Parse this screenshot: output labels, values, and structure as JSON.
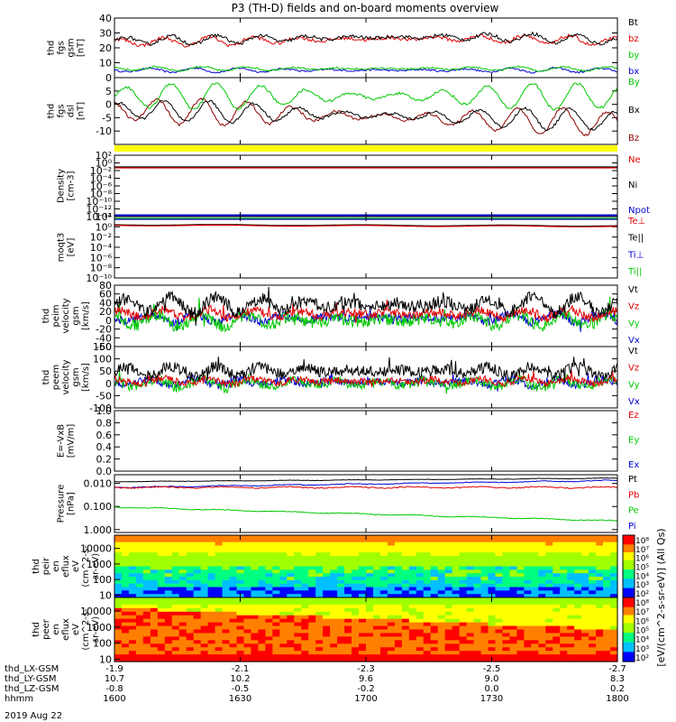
{
  "title": "P3 (TH-D) fields and on-board moments overview",
  "date_label": "2019 Aug 22",
  "colors": {
    "black": "#000000",
    "red": "#e00000",
    "green": "#00c800",
    "blue": "#0000d0",
    "darkred": "#8b0000",
    "yellow": "#ffff00"
  },
  "chart_data": [
    {
      "type": "line",
      "id": "fgs_mag",
      "ylabel": [
        "thd",
        "fgs",
        "gsm",
        "[nT]"
      ],
      "ylim": [
        0,
        40
      ],
      "yticks": [
        "0",
        "10",
        "20",
        "30",
        "40"
      ],
      "series": [
        {
          "name": "Bt",
          "color": "#000000",
          "mean": 25,
          "amp": 3,
          "trend": 4,
          "noise": 1.2
        },
        {
          "name": "bz",
          "color": "#e00000",
          "mean": 24,
          "amp": 3,
          "trend": 4,
          "noise": 1.2
        },
        {
          "name": "by",
          "color": "#00c800",
          "mean": 6,
          "amp": 1.5,
          "trend": 0,
          "noise": 0.6
        },
        {
          "name": "bx",
          "color": "#0000d0",
          "mean": 5,
          "amp": 1.5,
          "trend": 0,
          "noise": 0.6
        }
      ]
    },
    {
      "type": "line",
      "id": "fgs_dsl",
      "ylabel": [
        "thd",
        "fgs",
        "dsl",
        "[nT]"
      ],
      "ylim": [
        -15,
        10
      ],
      "yticks": [
        "-10",
        "-5",
        "0",
        "5"
      ],
      "series": [
        {
          "name": "By",
          "color": "#00c800",
          "mean": 3,
          "amp": 5,
          "trend": 0,
          "noise": 0.5
        },
        {
          "name": "Bx",
          "color": "#000000",
          "mean": -2,
          "amp": 4,
          "trend": -4,
          "noise": 0.5
        },
        {
          "name": "Bz",
          "color": "#8b0000",
          "mean": -2,
          "amp": 5,
          "trend": -5,
          "noise": 0.5
        }
      ]
    },
    {
      "type": "line",
      "id": "density",
      "scale": "log",
      "ylabel": [
        "Density",
        "[cm-3]"
      ],
      "ylim": [
        -16,
        4
      ],
      "yticks": [
        "10²",
        "10⁰",
        "10⁻²",
        "10⁻⁴",
        "10⁻⁶",
        "10⁻⁸",
        "10⁻¹⁰",
        "10⁻¹²",
        "10⁻¹⁴"
      ],
      "series": [
        {
          "name": "Ne",
          "color": "#e00000"
        },
        {
          "name": "Ni",
          "color": "#000000"
        },
        {
          "name": "Npot",
          "color": "#0000d0"
        }
      ]
    },
    {
      "type": "line",
      "id": "temperature",
      "scale": "log",
      "ylabel": [
        "moqt3",
        "[eV]"
      ],
      "ylim": [
        -10,
        4
      ],
      "yticks": [
        "10²",
        "10⁰",
        "10⁻²",
        "10⁻⁴",
        "10⁻⁶",
        "10⁻⁸",
        "10⁻¹⁰"
      ],
      "series": [
        {
          "name": "Te⊥",
          "color": "#e00000"
        },
        {
          "name": "Te||",
          "color": "#000000"
        },
        {
          "name": "Ti⊥",
          "color": "#0000d0"
        },
        {
          "name": "Ti||",
          "color": "#00c800"
        }
      ]
    },
    {
      "type": "line",
      "id": "peim_velocity",
      "ylabel": [
        "thd",
        "peim",
        "velocity",
        "gsm",
        "[km/s]"
      ],
      "ylim": [
        -60,
        80
      ],
      "yticks": [
        "-60",
        "-40",
        "-20",
        "0",
        "20",
        "40",
        "60",
        "80"
      ],
      "series": [
        {
          "name": "Vt",
          "color": "#000000",
          "mean": 35,
          "amp": 18,
          "trend": 0,
          "noise": 14
        },
        {
          "name": "Vz",
          "color": "#e00000",
          "mean": 15,
          "amp": 10,
          "trend": 0,
          "noise": 10
        },
        {
          "name": "Vy",
          "color": "#00c800",
          "mean": 0,
          "amp": 15,
          "trend": 0,
          "noise": 14
        },
        {
          "name": "Vx",
          "color": "#0000d0",
          "mean": 5,
          "amp": 10,
          "trend": 0,
          "noise": 10
        }
      ]
    },
    {
      "type": "line",
      "id": "peem_velocity",
      "ylabel": [
        "thd",
        "peem",
        "velocity",
        "gsm",
        "[km/s]"
      ],
      "ylim": [
        -100,
        150
      ],
      "yticks": [
        "-100",
        "-50",
        "0",
        "50",
        "100",
        "150"
      ],
      "series": [
        {
          "name": "Vt",
          "color": "#000000",
          "mean": 50,
          "amp": 20,
          "trend": 0,
          "noise": 22
        },
        {
          "name": "Vz",
          "color": "#e00000",
          "mean": 10,
          "amp": 12,
          "trend": 0,
          "noise": 14
        },
        {
          "name": "Vy",
          "color": "#00c800",
          "mean": 0,
          "amp": 20,
          "trend": 0,
          "noise": 20
        },
        {
          "name": "Vx",
          "color": "#0000d0",
          "mean": 5,
          "amp": 15,
          "trend": 0,
          "noise": 16
        }
      ]
    },
    {
      "type": "line",
      "id": "efield",
      "ylabel": [
        "E=-VxB",
        "[mV/m]"
      ],
      "ylim": [
        0,
        1
      ],
      "yticks": [
        "0.0",
        "0.2",
        "0.4",
        "0.6",
        "0.8",
        "1.0"
      ],
      "series": [
        {
          "name": "Ez",
          "color": "#e00000"
        },
        {
          "name": "Ey",
          "color": "#00c800"
        },
        {
          "name": "Ex",
          "color": "#0000d0"
        }
      ]
    },
    {
      "type": "line",
      "id": "pressure",
      "scale": "log",
      "ylabel": [
        "Pressure",
        "[nPa]"
      ],
      "ylim": [
        -2.5,
        0
      ],
      "yticks": [
        "0.010",
        "0.100",
        "1.000"
      ],
      "series": [
        {
          "name": "Pt",
          "color": "#000000"
        },
        {
          "name": "Pb",
          "color": "#e00000"
        },
        {
          "name": "Pe",
          "color": "#00c800"
        },
        {
          "name": "Pi",
          "color": "#0000d0"
        }
      ]
    },
    {
      "type": "heatmap",
      "id": "peir_eflux",
      "ylabel": [
        "thd",
        "peir",
        "en",
        "eflux",
        "eV",
        "(cm^2-s-",
        "sr-eV)"
      ],
      "yticks": [
        "10",
        "100",
        "1000",
        "10000"
      ]
    },
    {
      "type": "heatmap",
      "id": "peer_eflux",
      "ylabel": [
        "thd",
        "peer",
        "en",
        "eflux",
        "eV",
        "(cm^2-s-",
        "sr-eV)"
      ],
      "yticks": [
        "10",
        "100",
        "1000",
        "10000"
      ]
    }
  ],
  "colorbar": {
    "label": "[eV/(cm^2-s-sr-eV)] (All Qs)",
    "ticks": [
      "10⁸",
      "10⁷",
      "10⁶",
      "10⁵",
      "10⁴",
      "10³",
      "10²"
    ]
  },
  "xaxis": {
    "rows": [
      {
        "label": "thd_LX-GSM",
        "values": [
          "-1.9",
          "-2.1",
          "-2.3",
          "-2.5",
          "-2.7"
        ]
      },
      {
        "label": "thd_LY-GSM",
        "values": [
          "10.7",
          "10.2",
          "9.6",
          "9.0",
          "8.3"
        ]
      },
      {
        "label": "thd_LZ-GSM",
        "values": [
          "-0.8",
          "-0.5",
          "-0.2",
          "0.0",
          "0.2"
        ]
      },
      {
        "label": "hhmm",
        "values": [
          "1600",
          "1630",
          "1700",
          "1730",
          "1800"
        ]
      }
    ]
  }
}
